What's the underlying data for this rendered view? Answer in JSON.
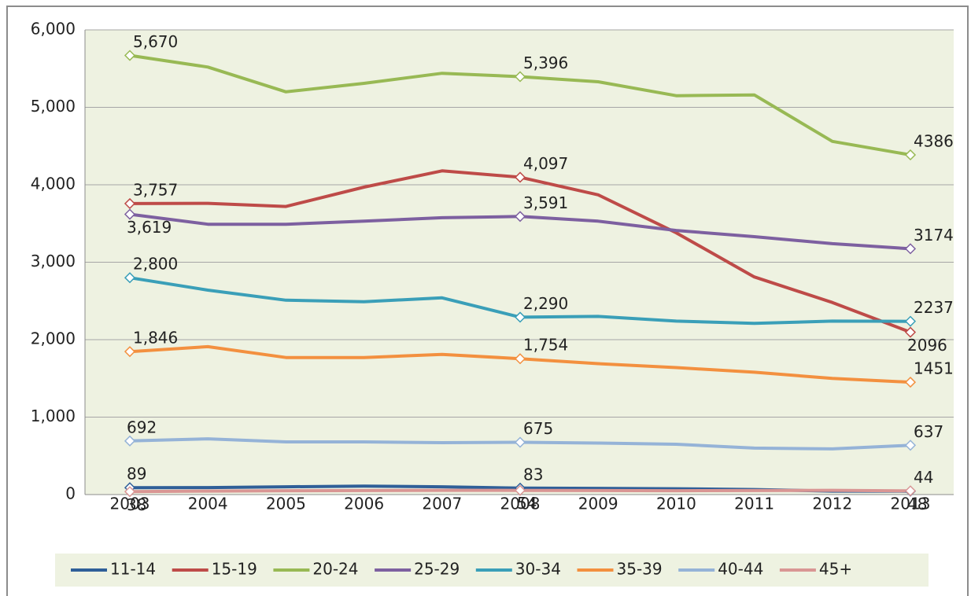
{
  "chart_data": {
    "type": "line",
    "categories": [
      "2003",
      "2004",
      "2005",
      "2006",
      "2007",
      "2008",
      "2009",
      "2010",
      "2011",
      "2012",
      "2013"
    ],
    "ylim": [
      0,
      6000
    ],
    "yticks": [
      0,
      {
        "value": 1000,
        "label": "1,000"
      },
      {
        "value": 2000,
        "label": "2,000"
      },
      {
        "value": 3000,
        "label": "3,000"
      },
      {
        "value": 4000,
        "label": "4,000"
      },
      {
        "value": 5000,
        "label": "5,000"
      },
      {
        "value": 6000,
        "label": "6,000"
      }
    ],
    "grid": true,
    "legend": "bottom",
    "series": [
      {
        "name": "11-14",
        "color": "#2f5f98",
        "values": [
          89,
          90,
          100,
          110,
          100,
          83,
          80,
          75,
          65,
          45,
          44
        ],
        "value_labels": [
          "89",
          null,
          null,
          null,
          null,
          "83",
          null,
          null,
          null,
          null,
          "44"
        ]
      },
      {
        "name": "15-19",
        "color": "#be4b48",
        "values": [
          3757,
          3760,
          3720,
          3970,
          4180,
          4097,
          3870,
          3380,
          2810,
          2480,
          2096
        ],
        "value_labels": [
          "3,757",
          null,
          null,
          null,
          null,
          "4,097",
          null,
          null,
          null,
          null,
          "2096"
        ]
      },
      {
        "name": "20-24",
        "color": "#98b954",
        "values": [
          5670,
          5520,
          5200,
          5310,
          5440,
          5396,
          5330,
          5150,
          5160,
          4560,
          4386
        ],
        "value_labels": [
          "5,670",
          null,
          null,
          null,
          null,
          "5,396",
          null,
          null,
          null,
          null,
          "4386"
        ]
      },
      {
        "name": "25-29",
        "color": "#7d60a0",
        "values": [
          3619,
          3490,
          3490,
          3530,
          3575,
          3591,
          3530,
          3410,
          3330,
          3240,
          3174
        ],
        "value_labels": [
          "3,619",
          null,
          null,
          null,
          null,
          "3,591",
          null,
          null,
          null,
          null,
          "3174"
        ]
      },
      {
        "name": "30-34",
        "color": "#3a9fb8",
        "values": [
          2800,
          2640,
          2510,
          2490,
          2540,
          2290,
          2300,
          2240,
          2210,
          2240,
          2237
        ],
        "value_labels": [
          "2,800",
          null,
          null,
          null,
          null,
          "2,290",
          null,
          null,
          null,
          null,
          "2237"
        ]
      },
      {
        "name": "35-39",
        "color": "#f3903f",
        "values": [
          1846,
          1910,
          1770,
          1770,
          1810,
          1754,
          1690,
          1640,
          1580,
          1500,
          1451
        ],
        "value_labels": [
          "1,846",
          null,
          null,
          null,
          null,
          "1,754",
          null,
          null,
          null,
          null,
          "1451"
        ]
      },
      {
        "name": "40-44",
        "color": "#95b3d7",
        "values": [
          692,
          720,
          680,
          680,
          670,
          675,
          665,
          650,
          600,
          590,
          637
        ],
        "value_labels": [
          "692",
          null,
          null,
          null,
          null,
          "675",
          null,
          null,
          null,
          null,
          "637"
        ]
      },
      {
        "name": "45+",
        "color": "#d99694",
        "values": [
          38,
          45,
          50,
          52,
          55,
          54,
          52,
          50,
          52,
          55,
          48
        ],
        "value_labels": [
          "38",
          null,
          null,
          null,
          null,
          "54",
          null,
          null,
          null,
          null,
          "48"
        ]
      }
    ]
  }
}
